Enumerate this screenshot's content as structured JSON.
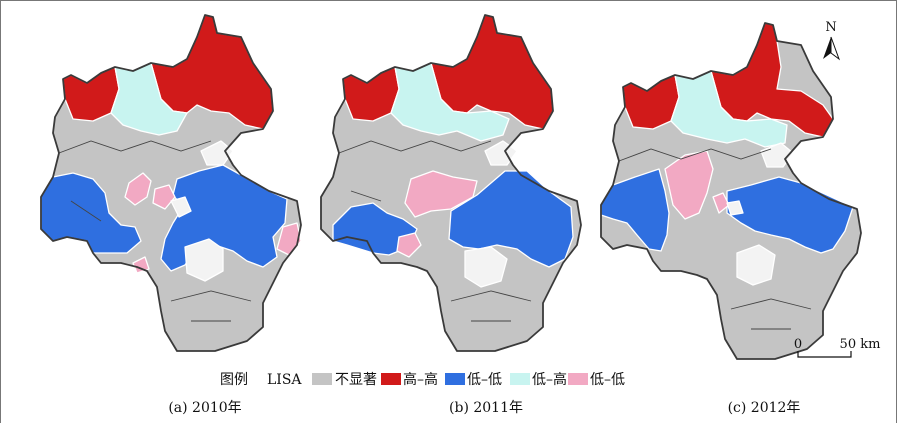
{
  "colors": {
    "not_significant": "#c4c4c4",
    "high_high": "#d11a1a",
    "low_low_blue": "#2f6fe0",
    "low_high": "#c8f4f0",
    "low_low_pink": "#f2a9c3",
    "empty": "#f3f3f3"
  },
  "legend": {
    "title": "图例",
    "lisa_label": "LISA",
    "items": [
      {
        "label": "不显著",
        "color_key": "not_significant"
      },
      {
        "label": "高–高",
        "color_key": "high_high"
      },
      {
        "label": "低–低",
        "color_key": "low_low_blue"
      },
      {
        "label": "低–高",
        "color_key": "low_high"
      },
      {
        "label": "低–低",
        "color_key": "low_low_pink"
      }
    ]
  },
  "maps": [
    {
      "caption": "(a) 2010年"
    },
    {
      "caption": "(b) 2011年"
    },
    {
      "caption": "(c) 2012年"
    }
  ],
  "north_arrow": {
    "label": "N",
    "icon": "north-arrow-icon"
  },
  "scale_bar": {
    "start_label": "0",
    "end_label": "50 km"
  }
}
